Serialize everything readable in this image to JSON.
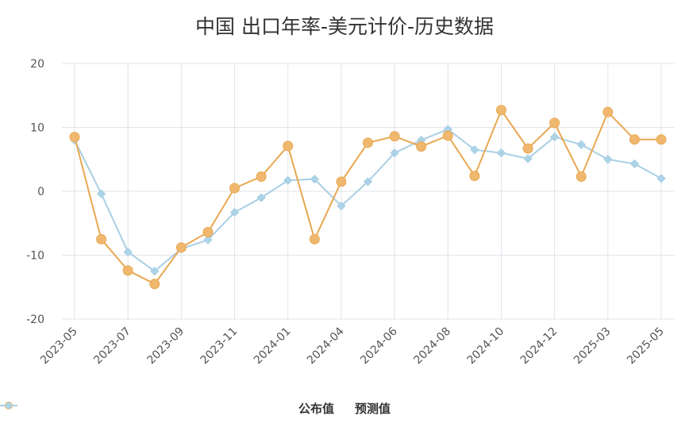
{
  "colors": {
    "published": "#f0b86e",
    "published_stroke": "#e8a851",
    "forecast": "#acd3e7",
    "forecast_stroke": "#a9cfe4",
    "grid": "#dfe4ea",
    "axis_text": "#555555"
  },
  "chart_data": {
    "type": "line",
    "title": "中国 出口年率-美元计价-历史数据",
    "xlabel": "",
    "ylabel": "",
    "ylim": [
      -20,
      20
    ],
    "yticks": [
      -20,
      -10,
      0,
      10,
      20
    ],
    "x": [
      "2023-05",
      "2023-06",
      "2023-07",
      "2023-08",
      "2023-09",
      "2023-10",
      "2023-11",
      "2023-12",
      "2024-01",
      "2024-03",
      "2024-04",
      "2024-05",
      "2024-06",
      "2024-07",
      "2024-08",
      "2024-09",
      "2024-10",
      "2024-11",
      "2024-12",
      "2025-01",
      "2025-03",
      "2025-04",
      "2025-05"
    ],
    "xtick_labels": [
      "2023-05",
      "2023-07",
      "2023-09",
      "2023-11",
      "2024-01",
      "2024-04",
      "2024-06",
      "2024-08",
      "2024-10",
      "2024-12",
      "2025-03",
      "2025-05"
    ],
    "grid": true,
    "legend_position": "bottom-center",
    "series": [
      {
        "name": "公布值",
        "marker": "circle",
        "values": [
          8.5,
          -7.5,
          -12.4,
          -14.5,
          -8.8,
          -6.4,
          0.5,
          2.3,
          7.1,
          -7.5,
          1.5,
          7.6,
          8.6,
          7.0,
          8.7,
          2.4,
          12.7,
          6.7,
          10.7,
          2.3,
          12.4,
          8.1,
          8.1
        ]
      },
      {
        "name": "预测值",
        "marker": "diamond",
        "values": [
          8.0,
          -0.4,
          -9.5,
          -12.5,
          -9.0,
          -7.6,
          -3.3,
          -1.0,
          1.7,
          1.9,
          -2.3,
          1.5,
          6.0,
          8.0,
          9.7,
          6.5,
          6.0,
          5.1,
          8.5,
          7.3,
          5.0,
          4.3,
          2.0
        ]
      }
    ]
  }
}
